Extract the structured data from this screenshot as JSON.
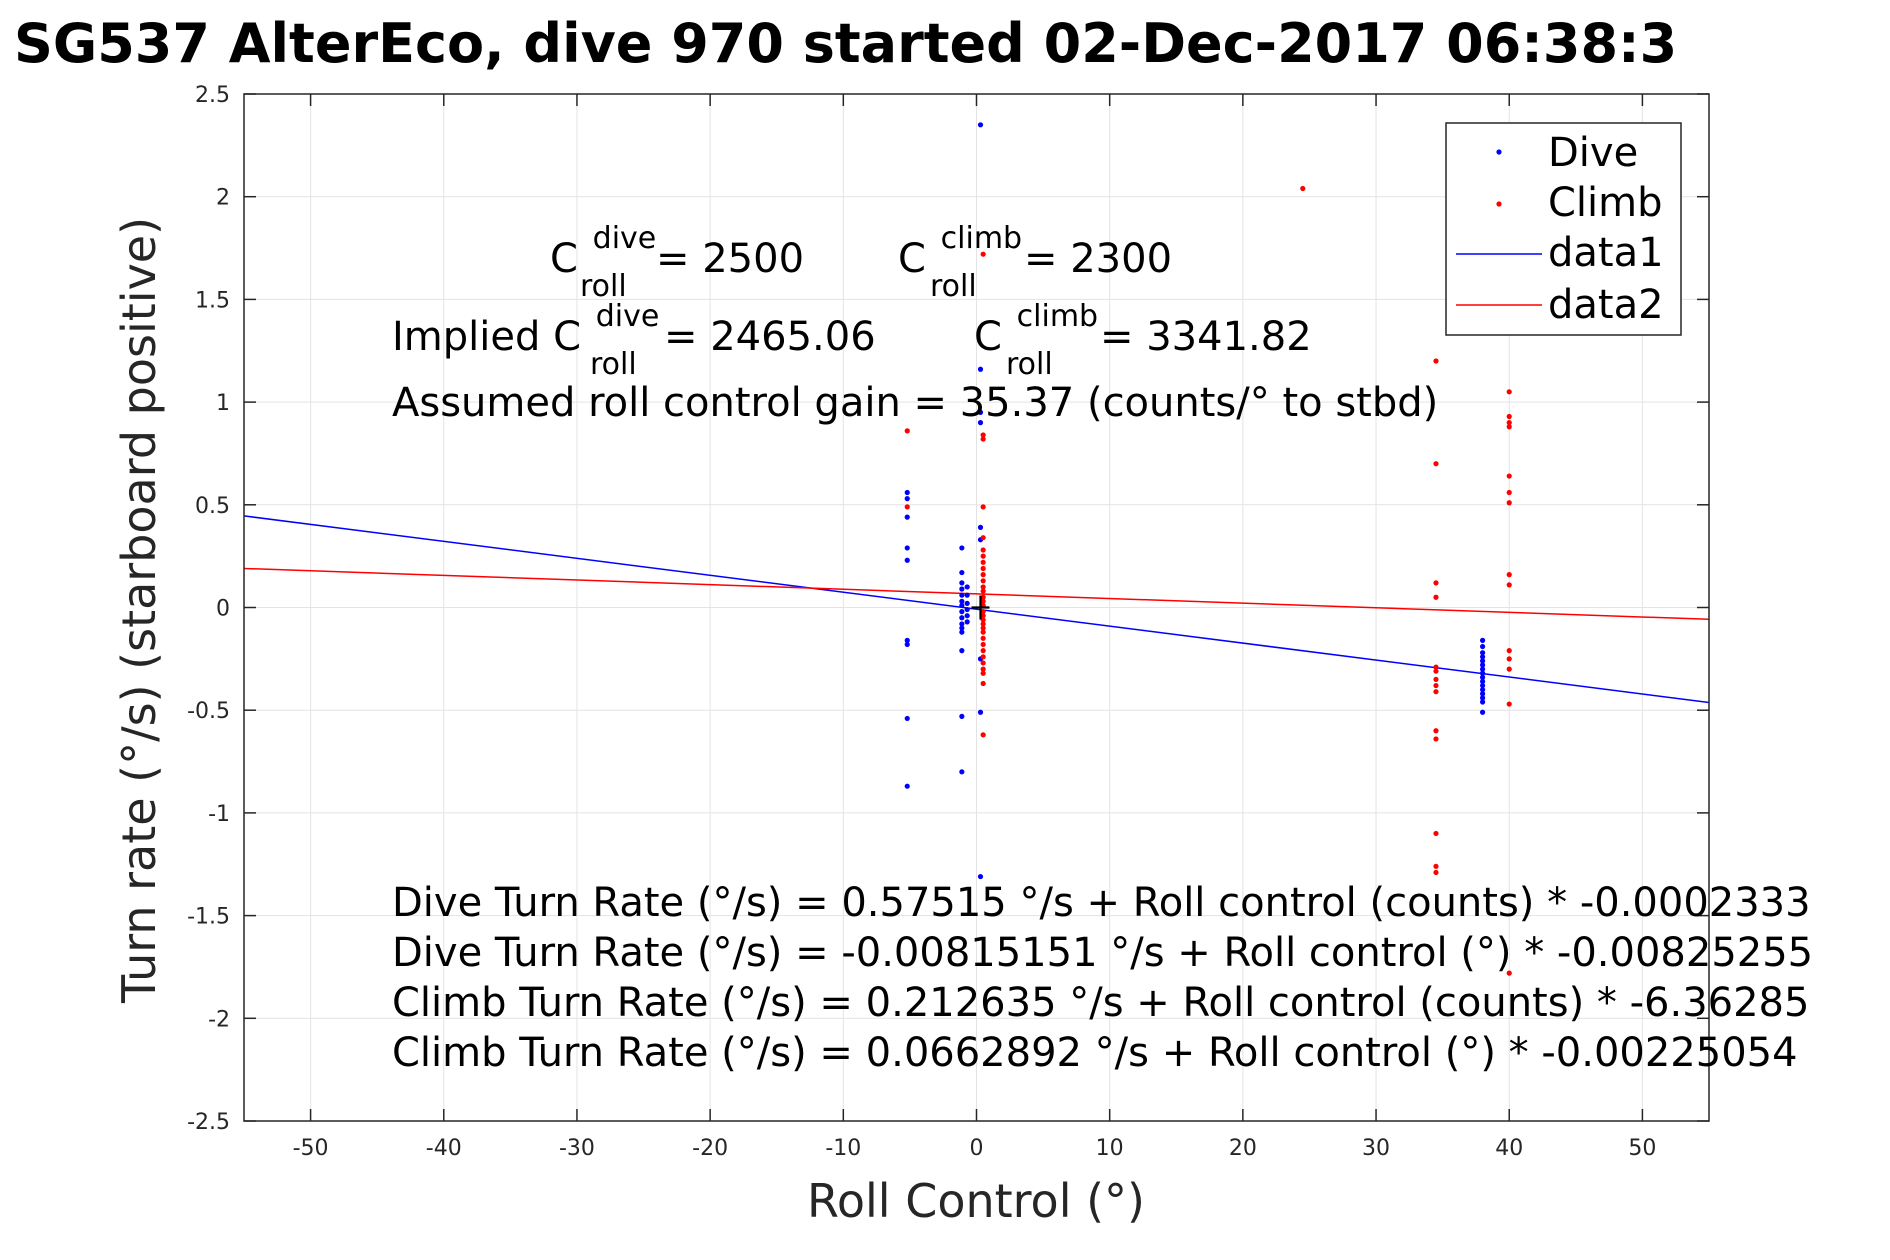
{
  "chart_data": {
    "type": "scatter",
    "title": "SG537 AlterEco, dive 970 started 02-Dec-2017 06:38:3",
    "xlabel": "Roll Control (°)",
    "ylabel": "Turn rate (°/s) (starboard positive)",
    "xlim": [
      -55,
      55
    ],
    "ylim": [
      -2.5,
      2.5
    ],
    "xticks": [
      -50,
      -40,
      -30,
      -20,
      -10,
      0,
      10,
      20,
      30,
      40,
      50
    ],
    "xtick_labels": [
      "-50",
      "-40",
      "-30",
      "-20",
      "-10",
      "0",
      "10",
      "20",
      "30",
      "40",
      "50"
    ],
    "yticks": [
      -2.5,
      -2,
      -1.5,
      -1,
      -0.5,
      0,
      0.5,
      1,
      1.5,
      2,
      2.5
    ],
    "ytick_labels": [
      "-2.5",
      "-2",
      "-1.5",
      "-1",
      "-0.5",
      "0",
      "0.5",
      "1",
      "1.5",
      "2",
      "2.5"
    ],
    "grid": true,
    "legend_position": "top-right",
    "legend": [
      {
        "label": "Dive",
        "marker": "dot",
        "color": "#0000ff"
      },
      {
        "label": "Climb",
        "marker": "dot",
        "color": "#ff0000"
      },
      {
        "label": "data1",
        "marker": "line",
        "color": "#0000ff"
      },
      {
        "label": "data2",
        "marker": "line",
        "color": "#ff0000"
      }
    ],
    "series": [
      {
        "name": "Dive",
        "kind": "scatter",
        "color": "#0000ff",
        "points": [
          [
            -5.2,
            0.56
          ],
          [
            -5.2,
            0.53
          ],
          [
            -5.2,
            0.44
          ],
          [
            -5.2,
            0.29
          ],
          [
            -5.2,
            0.23
          ],
          [
            -5.2,
            -0.16
          ],
          [
            -5.2,
            -0.18
          ],
          [
            -5.2,
            -0.54
          ],
          [
            -5.2,
            -0.87
          ],
          [
            -1.1,
            0.29
          ],
          [
            -1.1,
            0.17
          ],
          [
            -1.1,
            0.12
          ],
          [
            -1.1,
            0.09
          ],
          [
            -1.1,
            0.06
          ],
          [
            -1.1,
            0.03
          ],
          [
            -1.1,
            0.01
          ],
          [
            -1.1,
            -0.02
          ],
          [
            -1.1,
            -0.05
          ],
          [
            -1.1,
            -0.08
          ],
          [
            -1.1,
            -0.1
          ],
          [
            -1.1,
            -0.12
          ],
          [
            -1.1,
            -0.21
          ],
          [
            -1.1,
            -0.53
          ],
          [
            -1.1,
            -0.8
          ],
          [
            -0.7,
            0.1
          ],
          [
            -0.7,
            0.06
          ],
          [
            -0.7,
            0.02
          ],
          [
            -0.7,
            -0.01
          ],
          [
            -0.7,
            -0.04
          ],
          [
            -0.7,
            -0.07
          ],
          [
            0.3,
            2.35
          ],
          [
            0.3,
            1.16
          ],
          [
            0.3,
            0.95
          ],
          [
            0.3,
            0.9
          ],
          [
            0.3,
            0.39
          ],
          [
            0.3,
            0.33
          ],
          [
            0.3,
            -0.25
          ],
          [
            0.3,
            -0.51
          ],
          [
            0.3,
            -1.31
          ],
          [
            38,
            -0.16
          ],
          [
            38,
            -0.19
          ],
          [
            38,
            -0.22
          ],
          [
            38,
            -0.24
          ],
          [
            38,
            -0.26
          ],
          [
            38,
            -0.28
          ],
          [
            38,
            -0.3
          ],
          [
            38,
            -0.32
          ],
          [
            38,
            -0.34
          ],
          [
            38,
            -0.36
          ],
          [
            38,
            -0.38
          ],
          [
            38,
            -0.4
          ],
          [
            38,
            -0.42
          ],
          [
            38,
            -0.44
          ],
          [
            38,
            -0.46
          ],
          [
            38,
            -0.51
          ]
        ]
      },
      {
        "name": "Climb",
        "kind": "scatter",
        "color": "#ff0000",
        "points": [
          [
            -5.2,
            0.86
          ],
          [
            -5.2,
            0.49
          ],
          [
            24.5,
            2.04
          ],
          [
            0.5,
            1.72
          ],
          [
            0.5,
            0.84
          ],
          [
            0.5,
            0.82
          ],
          [
            0.5,
            0.49
          ],
          [
            0.5,
            0.34
          ],
          [
            0.5,
            0.28
          ],
          [
            0.5,
            0.25
          ],
          [
            0.5,
            0.22
          ],
          [
            0.5,
            0.19
          ],
          [
            0.5,
            0.16
          ],
          [
            0.5,
            0.13
          ],
          [
            0.5,
            0.1
          ],
          [
            0.5,
            0.08
          ],
          [
            0.5,
            0.05
          ],
          [
            0.5,
            0.03
          ],
          [
            0.5,
            0.01
          ],
          [
            0.5,
            -0.02
          ],
          [
            0.5,
            -0.04
          ],
          [
            0.5,
            -0.06
          ],
          [
            0.5,
            -0.08
          ],
          [
            0.5,
            -0.1
          ],
          [
            0.5,
            -0.12
          ],
          [
            0.5,
            -0.15
          ],
          [
            0.5,
            -0.18
          ],
          [
            0.5,
            -0.21
          ],
          [
            0.5,
            -0.24
          ],
          [
            0.5,
            -0.27
          ],
          [
            0.5,
            -0.3
          ],
          [
            0.5,
            -0.32
          ],
          [
            0.5,
            -0.37
          ],
          [
            0.5,
            -0.62
          ],
          [
            34.5,
            1.2
          ],
          [
            34.5,
            0.7
          ],
          [
            34.5,
            0.12
          ],
          [
            34.5,
            0.05
          ],
          [
            34.5,
            -0.29
          ],
          [
            34.5,
            -0.31
          ],
          [
            34.5,
            -0.35
          ],
          [
            34.5,
            -0.38
          ],
          [
            34.5,
            -0.41
          ],
          [
            34.5,
            -0.6
          ],
          [
            34.5,
            -0.64
          ],
          [
            34.5,
            -1.1
          ],
          [
            34.5,
            -1.26
          ],
          [
            34.5,
            -1.29
          ],
          [
            40,
            1.35
          ],
          [
            40,
            1.05
          ],
          [
            40,
            0.93
          ],
          [
            40,
            0.9
          ],
          [
            40,
            0.88
          ],
          [
            40,
            0.64
          ],
          [
            40,
            0.56
          ],
          [
            40,
            0.51
          ],
          [
            40,
            0.16
          ],
          [
            40,
            0.11
          ],
          [
            40,
            -0.21
          ],
          [
            40,
            -0.25
          ],
          [
            40,
            -0.3
          ],
          [
            40,
            -0.47
          ],
          [
            40,
            -1.78
          ]
        ]
      },
      {
        "name": "data1",
        "kind": "line",
        "color": "#0000ff",
        "points": [
          [
            -55,
            0.4459
          ],
          [
            55,
            -0.4623
          ]
        ]
      },
      {
        "name": "data2",
        "kind": "line",
        "color": "#ff0000",
        "points": [
          [
            -55,
            0.1901
          ],
          [
            55,
            -0.0575
          ]
        ]
      }
    ],
    "annotations": {
      "c_dive": {
        "base": "C",
        "sup": "dive",
        "sub": "roll",
        "rest": " = 2500"
      },
      "c_climb": {
        "base": "C",
        "sup": "climb",
        "sub": "roll",
        "rest": " = 2300"
      },
      "implied_dive": {
        "prefix": "Implied C",
        "sup": "dive",
        "sub": "roll",
        "rest": " = 2465.06"
      },
      "implied_climb": {
        "base": "C",
        "sup": "climb",
        "sub": "roll",
        "rest": " = 3341.82"
      },
      "gain": "Assumed roll control gain = 35.37 (counts/° to stbd)",
      "eq1": "Dive Turn Rate (°/s) = 0.57515 °/s + Roll control (counts) * -0.0002333",
      "eq2": "Dive Turn Rate (°/s) = -0.00815151 °/s + Roll control (°) * -0.00825255",
      "eq3": "Climb Turn Rate (°/s) = 0.212635 °/s + Roll control (counts) * -6.36285",
      "eq4": "Climb Turn Rate (°/s) = 0.0662892 °/s + Roll control (°) * -0.00225054"
    },
    "center_marker": {
      "x": 0.3,
      "y": 0.0,
      "symbol": "+"
    }
  }
}
